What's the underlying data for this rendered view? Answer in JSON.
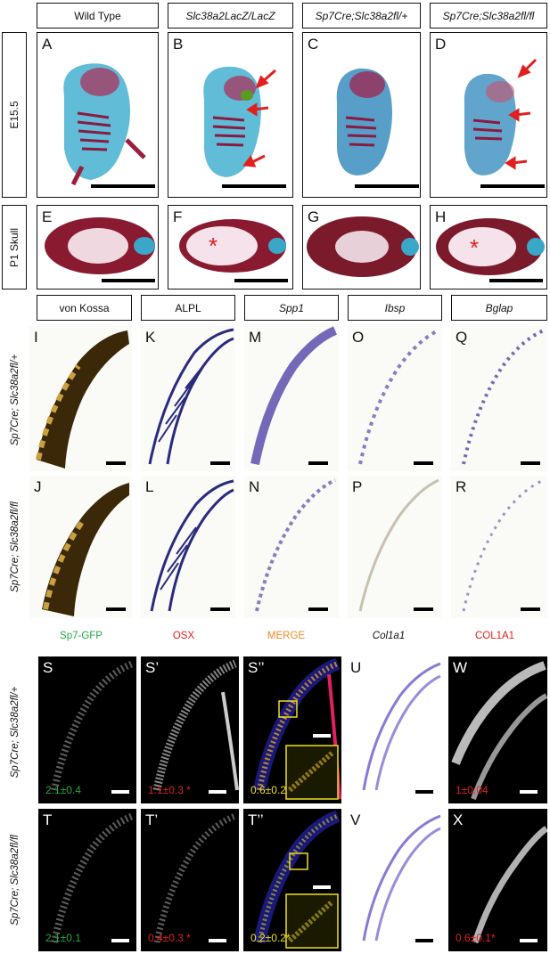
{
  "genotype_headers": [
    "Wild Type",
    "Slc38a2LacZ/LacZ",
    "Sp7Cre;Slc38a2fl/+",
    "Sp7Cre;Slc38a2fl/fl"
  ],
  "row_labels": {
    "e15": "E15.5",
    "p1": "P1 Skull"
  },
  "stain_headers": [
    "von Kossa",
    "ALPL",
    "Spp1",
    "Ibsp",
    "Bglap"
  ],
  "side_labels": {
    "het": "Sp7Cre; Slc38a2fl/+",
    "ko": "Sp7Cre; Slc38a2fl/fl"
  },
  "channel_headers": [
    {
      "text": "Sp7-GFP",
      "color": "#22aa44"
    },
    {
      "text": "OSX",
      "color": "#e02020"
    },
    {
      "text": "MERGE",
      "color": "#f08a24"
    },
    {
      "text": "Col1a1",
      "color": "#111111"
    },
    {
      "text": "COL1A1",
      "color": "#e02020"
    }
  ],
  "panels": {
    "A": "A",
    "B": "B",
    "C": "C",
    "D": "D",
    "E": "E",
    "F": "F",
    "G": "G",
    "H": "H",
    "I": "I",
    "J": "J",
    "K": "K",
    "L": "L",
    "M": "M",
    "N": "N",
    "O": "O",
    "P": "P",
    "Q": "Q",
    "R": "R",
    "S": "S",
    "S1": "S’",
    "S2": "S’’",
    "U": "U",
    "W": "W",
    "T": "T",
    "T1": "T’",
    "T2": "T’’",
    "V": "V",
    "X": "X"
  },
  "quant": {
    "S": "2.1±0.4",
    "S1": "1.1±0.3 *",
    "S2": "0.6±0.2",
    "W": "1±0.04",
    "T": "2.1±0.1",
    "T1": "0.4±0.3 *",
    "T2": "0.2±0.2*",
    "X": "0.6±0.1*"
  },
  "colors": {
    "green": "#22aa44",
    "red": "#e02020",
    "yellow": "#f0e020",
    "arrow": "#e02020",
    "cartilage": "#3aa6c8",
    "bone": "#9a1f3d",
    "in_situ": "#3a2aa0",
    "von_kossa": "#3a2808"
  }
}
